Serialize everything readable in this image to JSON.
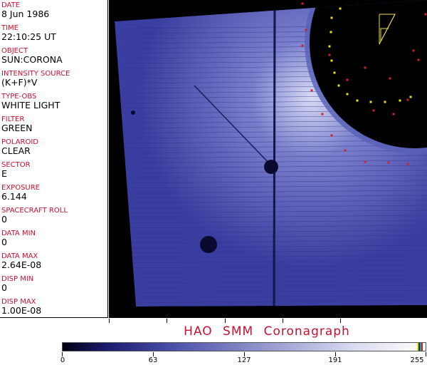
{
  "metadata": [
    {
      "label": "DATE",
      "value": "8 Jun 1986"
    },
    {
      "label": "TIME",
      "value": "22:10:25 UT"
    },
    {
      "label": "OBJECT",
      "value": "SUN:CORONA"
    },
    {
      "label": "INTENSITY SOURCE",
      "value": "(K+F)*V"
    },
    {
      "label": "TYPE-OBS",
      "value": "WHITE LIGHT"
    },
    {
      "label": "FILTER",
      "value": "GREEN"
    },
    {
      "label": "POLAROID",
      "value": "CLEAR"
    },
    {
      "label": "SECTOR",
      "value": "E"
    },
    {
      "label": "EXPOSURE",
      "value": "6.144"
    },
    {
      "label": "SPACECRAFT ROLL",
      "value": "0"
    },
    {
      "label": "DATA MIN",
      "value": "0"
    },
    {
      "label": "DATA MAX",
      "value": "2.64E-08"
    },
    {
      "label": "DISP MIN",
      "value": "0"
    },
    {
      "label": "DISP MAX",
      "value": "1.00E-08"
    }
  ],
  "title": "HAO SMM Coronagraph",
  "colorbar": {
    "labels": [
      "0",
      "63",
      "127",
      "191",
      "255"
    ],
    "colors": {
      "label": "#c8102e",
      "image": "#4a4ea8"
    }
  }
}
